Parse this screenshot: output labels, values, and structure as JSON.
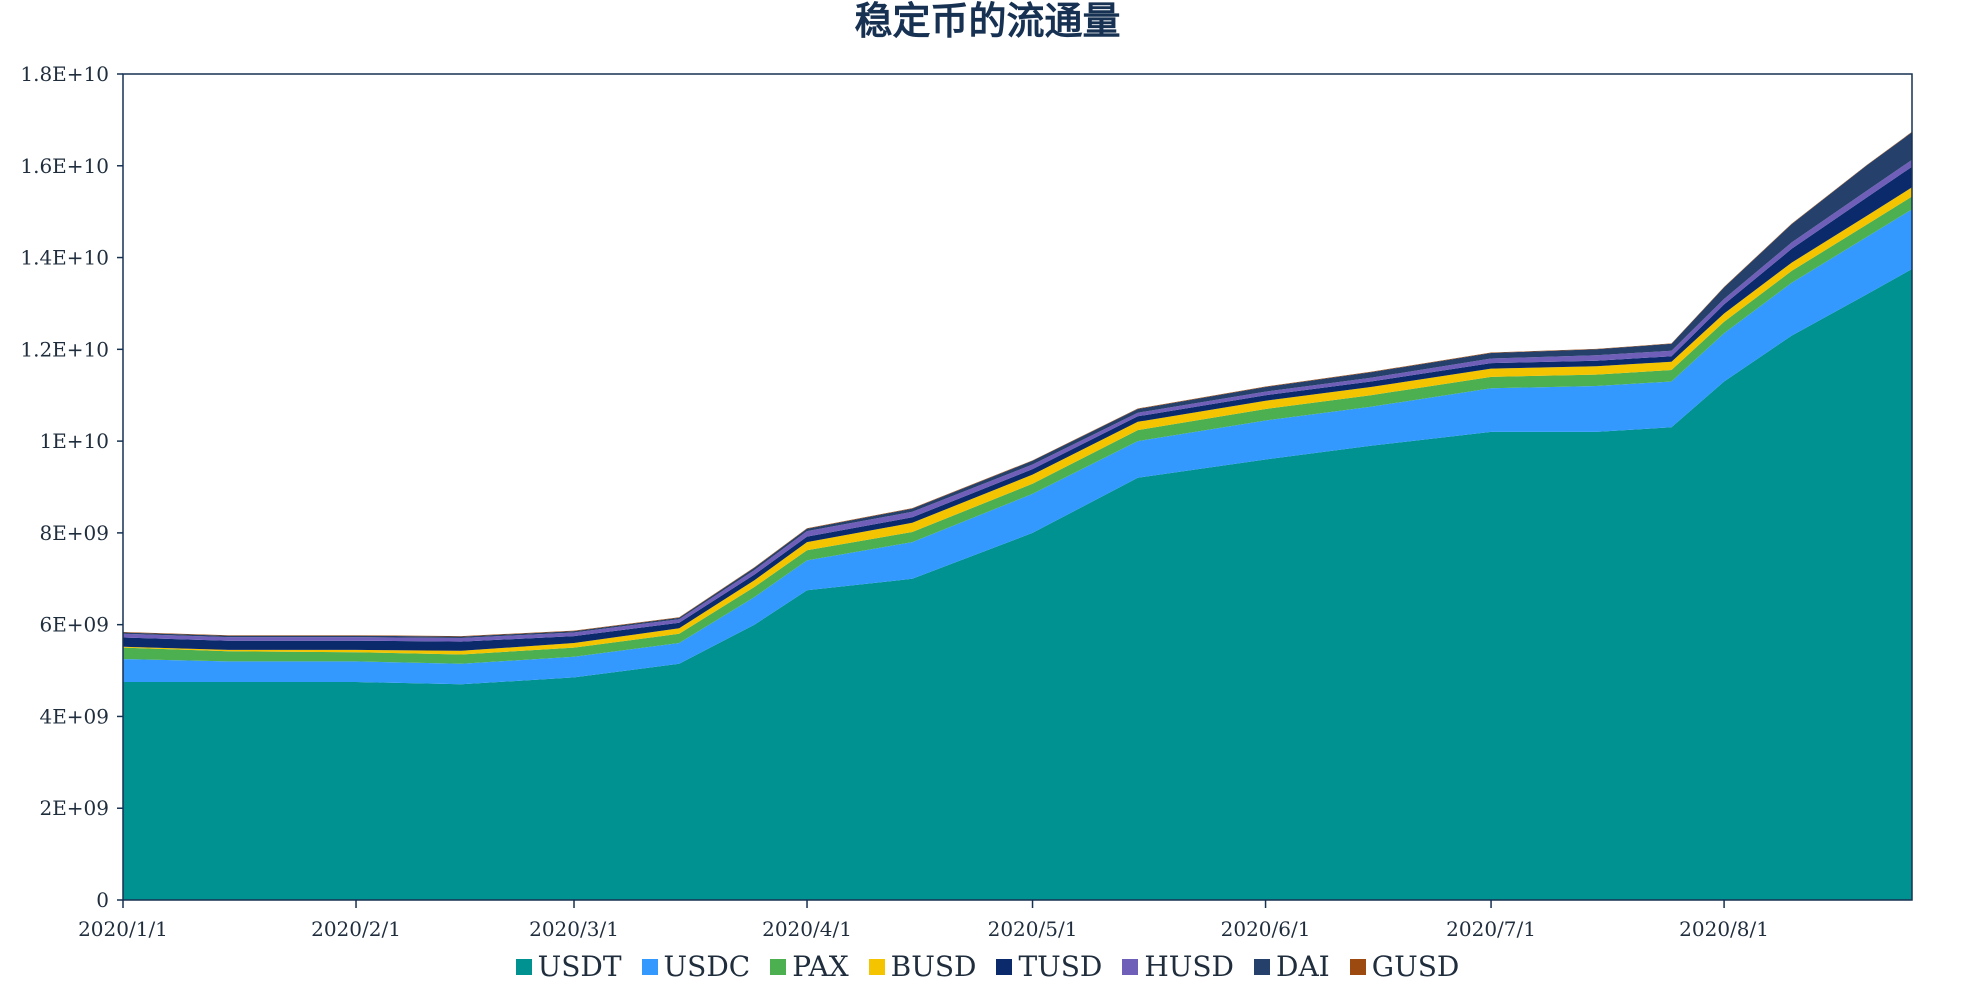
{
  "chart_data": {
    "type": "area",
    "stacked": true,
    "title": "稳定币的流通量",
    "xlabel": "",
    "ylabel": "",
    "ylim": [
      0,
      18000000000
    ],
    "y_ticks": [
      "0",
      "2E+09",
      "4E+09",
      "6E+09",
      "8E+09",
      "1E+10",
      "1.2E+10",
      "1.4E+10",
      "1.6E+10",
      "1.8E+10"
    ],
    "x_range": [
      "2020/1/1",
      "2020/8/26"
    ],
    "x_ticks": [
      "2020/1/1",
      "2020/2/1",
      "2020/3/1",
      "2020/4/1",
      "2020/5/1",
      "2020/6/1",
      "2020/7/1",
      "2020/8/1"
    ],
    "grid": false,
    "legend_position": "bottom",
    "x": [
      "2020/1/1",
      "2020/1/15",
      "2020/2/1",
      "2020/2/15",
      "2020/3/1",
      "2020/3/15",
      "2020/3/25",
      "2020/4/1",
      "2020/4/15",
      "2020/5/1",
      "2020/5/15",
      "2020/6/1",
      "2020/6/15",
      "2020/7/1",
      "2020/7/15",
      "2020/7/25",
      "2020/8/1",
      "2020/8/10",
      "2020/8/20",
      "2020/8/26"
    ],
    "series": [
      {
        "name": "USDT",
        "color": "#009191",
        "values": [
          4750000000.0,
          4750000000.0,
          4750000000.0,
          4700000000.0,
          4850000000.0,
          5150000000.0,
          6000000000.0,
          6750000000.0,
          7000000000.0,
          8000000000.0,
          9200000000.0,
          9600000000.0,
          9900000000.0,
          10200000000.0,
          10200000000.0,
          10300000000.0,
          11300000000.0,
          12300000000.0,
          13200000000.0,
          13750000000.0
        ]
      },
      {
        "name": "USDC",
        "color": "#3399ff",
        "values": [
          500000000.0,
          450000000.0,
          450000000.0,
          450000000.0,
          450000000.0,
          450000000.0,
          600000000.0,
          650000000.0,
          800000000.0,
          850000000.0,
          800000000.0,
          850000000.0,
          850000000.0,
          950000000.0,
          1000000000.0,
          1000000000.0,
          1050000000.0,
          1150000000.0,
          1250000000.0,
          1300000000.0
        ]
      },
      {
        "name": "PAX",
        "color": "#4caf50",
        "values": [
          250000000.0,
          220000000.0,
          200000000.0,
          200000000.0,
          200000000.0,
          200000000.0,
          220000000.0,
          220000000.0,
          220000000.0,
          220000000.0,
          240000000.0,
          250000000.0,
          250000000.0,
          250000000.0,
          250000000.0,
          250000000.0,
          250000000.0,
          260000000.0,
          270000000.0,
          280000000.0
        ]
      },
      {
        "name": "BUSD",
        "color": "#f5c400",
        "values": [
          20000000.0,
          30000000.0,
          50000000.0,
          80000000.0,
          100000000.0,
          120000000.0,
          150000000.0,
          180000000.0,
          200000000.0,
          200000000.0,
          180000000.0,
          180000000.0,
          180000000.0,
          180000000.0,
          180000000.0,
          180000000.0,
          180000000.0,
          180000000.0,
          190000000.0,
          200000000.0
        ]
      },
      {
        "name": "TUSD",
        "color": "#0a2a6b",
        "values": [
          200000000.0,
          200000000.0,
          200000000.0,
          200000000.0,
          150000000.0,
          120000000.0,
          120000000.0,
          120000000.0,
          120000000.0,
          120000000.0,
          120000000.0,
          120000000.0,
          120000000.0,
          120000000.0,
          120000000.0,
          120000000.0,
          200000000.0,
          300000000.0,
          400000000.0,
          450000000.0
        ]
      },
      {
        "name": "HUSD",
        "color": "#6f5fb8",
        "values": [
          80000000.0,
          80000000.0,
          80000000.0,
          80000000.0,
          80000000.0,
          80000000.0,
          100000000.0,
          120000000.0,
          120000000.0,
          100000000.0,
          80000000.0,
          80000000.0,
          80000000.0,
          100000000.0,
          120000000.0,
          120000000.0,
          120000000.0,
          140000000.0,
          150000000.0,
          150000000.0
        ]
      },
      {
        "name": "DAI",
        "color": "#24406b",
        "values": [
          30000000.0,
          30000000.0,
          30000000.0,
          30000000.0,
          30000000.0,
          30000000.0,
          50000000.0,
          50000000.0,
          70000000.0,
          80000000.0,
          80000000.0,
          100000000.0,
          120000000.0,
          120000000.0,
          130000000.0,
          150000000.0,
          250000000.0,
          400000000.0,
          550000000.0,
          600000000.0
        ]
      },
      {
        "name": "GUSD",
        "color": "#9c4a0f",
        "values": [
          10000000.0,
          10000000.0,
          10000000.0,
          10000000.0,
          10000000.0,
          10000000.0,
          10000000.0,
          10000000.0,
          10000000.0,
          10000000.0,
          10000000.0,
          10000000.0,
          10000000.0,
          10000000.0,
          10000000.0,
          10000000.0,
          10000000.0,
          10000000.0,
          10000000.0,
          10000000.0
        ]
      }
    ]
  }
}
